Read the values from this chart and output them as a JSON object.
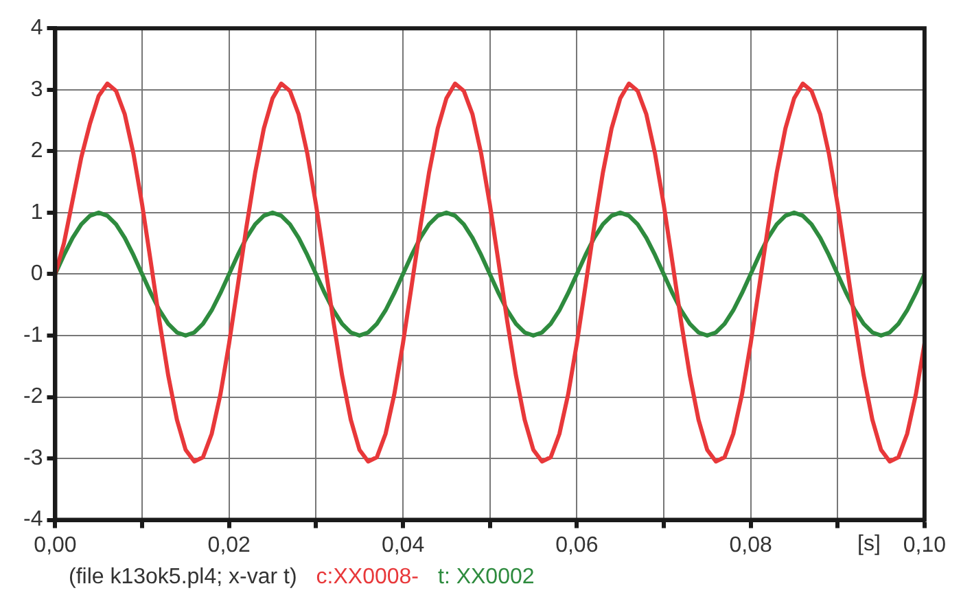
{
  "chart_data": {
    "type": "line",
    "xlabel": "[s]",
    "annotations": [
      "(file k13ok5.pl4; x-var t)"
    ],
    "x": [
      0,
      0.001,
      0.002,
      0.003,
      0.004,
      0.005,
      0.006,
      0.007,
      0.008,
      0.009,
      0.01,
      0.011,
      0.012,
      0.013,
      0.014,
      0.015,
      0.016,
      0.017,
      0.018,
      0.019,
      0.02,
      0.021,
      0.022,
      0.023,
      0.024,
      0.025,
      0.026,
      0.027,
      0.028,
      0.029,
      0.03,
      0.031,
      0.032,
      0.033,
      0.034,
      0.035,
      0.036,
      0.037,
      0.038,
      0.039,
      0.04,
      0.041,
      0.042,
      0.043,
      0.044,
      0.045,
      0.046,
      0.047,
      0.048,
      0.049,
      0.05,
      0.051,
      0.052,
      0.053,
      0.054,
      0.055,
      0.056,
      0.057,
      0.058,
      0.059,
      0.06,
      0.061,
      0.062,
      0.063,
      0.064,
      0.065,
      0.066,
      0.067,
      0.068,
      0.069,
      0.07,
      0.071,
      0.072,
      0.073,
      0.074,
      0.075,
      0.076,
      0.077,
      0.078,
      0.079,
      0.08,
      0.081,
      0.082,
      0.083,
      0.084,
      0.085,
      0.086,
      0.087,
      0.088,
      0.089,
      0.09,
      0.091,
      0.092,
      0.093,
      0.094,
      0.095,
      0.096,
      0.097,
      0.098,
      0.099,
      0.1
    ],
    "series": [
      {
        "name": "c:XX0008-",
        "color": "#e8383a",
        "values": [
          0,
          0.5,
          1.2,
          1.9,
          2.45,
          2.9,
          3.1,
          2.98,
          2.6,
          1.96,
          1.13,
          0.19,
          -0.77,
          -1.65,
          -2.37,
          -2.86,
          -3.05,
          -2.98,
          -2.6,
          -1.96,
          -1.13,
          -0.19,
          0.77,
          1.65,
          2.37,
          2.86,
          3.1,
          2.98,
          2.6,
          1.96,
          1.13,
          0.19,
          -0.77,
          -1.65,
          -2.37,
          -2.86,
          -3.05,
          -2.98,
          -2.6,
          -1.96,
          -1.13,
          -0.19,
          0.77,
          1.65,
          2.37,
          2.86,
          3.1,
          2.98,
          2.6,
          1.96,
          1.13,
          0.19,
          -0.77,
          -1.65,
          -2.37,
          -2.86,
          -3.05,
          -2.98,
          -2.6,
          -1.96,
          -1.13,
          -0.19,
          0.77,
          1.65,
          2.37,
          2.86,
          3.1,
          2.98,
          2.6,
          1.96,
          1.13,
          0.19,
          -0.77,
          -1.65,
          -2.37,
          -2.86,
          -3.05,
          -2.98,
          -2.6,
          -1.96,
          -1.13,
          -0.19,
          0.77,
          1.65,
          2.37,
          2.86,
          3.1,
          2.98,
          2.6,
          1.96,
          1.13,
          0.19,
          -0.77,
          -1.65,
          -2.37,
          -2.86,
          -3.05,
          -2.98,
          -2.6,
          -1.96,
          -1.13
        ]
      },
      {
        "name": "t: XX0002",
        "color": "#2e8b3e",
        "values": [
          0,
          0.31,
          0.59,
          0.81,
          0.95,
          1,
          0.95,
          0.81,
          0.59,
          0.31,
          0,
          -0.31,
          -0.59,
          -0.81,
          -0.95,
          -1,
          -0.95,
          -0.81,
          -0.59,
          -0.31,
          0,
          0.31,
          0.59,
          0.81,
          0.95,
          1,
          0.95,
          0.81,
          0.59,
          0.31,
          0,
          -0.31,
          -0.59,
          -0.81,
          -0.95,
          -1,
          -0.95,
          -0.81,
          -0.59,
          -0.31,
          0,
          0.31,
          0.59,
          0.81,
          0.95,
          1,
          0.95,
          0.81,
          0.59,
          0.31,
          0,
          -0.31,
          -0.59,
          -0.81,
          -0.95,
          -1,
          -0.95,
          -0.81,
          -0.59,
          -0.31,
          0,
          0.31,
          0.59,
          0.81,
          0.95,
          1,
          0.95,
          0.81,
          0.59,
          0.31,
          0,
          -0.31,
          -0.59,
          -0.81,
          -0.95,
          -1,
          -0.95,
          -0.81,
          -0.59,
          -0.31,
          0,
          0.31,
          0.59,
          0.81,
          0.95,
          1,
          0.95,
          0.81,
          0.59,
          0.31,
          0,
          -0.31,
          -0.59,
          -0.81,
          -0.95,
          -1,
          -0.95,
          -0.81,
          -0.59,
          -0.31,
          0
        ]
      }
    ],
    "xlim": [
      0,
      0.1
    ],
    "xticks": [
      {
        "value": 0,
        "label": "0,00"
      },
      {
        "value": 0.01,
        "label": null
      },
      {
        "value": 0.02,
        "label": "0,02"
      },
      {
        "value": 0.03,
        "label": null
      },
      {
        "value": 0.04,
        "label": "0,04"
      },
      {
        "value": 0.05,
        "label": null
      },
      {
        "value": 0.06,
        "label": "0,06"
      },
      {
        "value": 0.07,
        "label": null
      },
      {
        "value": 0.08,
        "label": "0,08"
      },
      {
        "value": 0.09,
        "label": null
      },
      {
        "value": 0.1,
        "label": "0,10"
      }
    ],
    "ylim": [
      -4,
      4
    ],
    "yticks": [
      -4,
      -3,
      -2,
      -1,
      0,
      1,
      2,
      3,
      4
    ],
    "grid": true,
    "legend": "bottom",
    "marker": "none",
    "line_style": "solid"
  }
}
